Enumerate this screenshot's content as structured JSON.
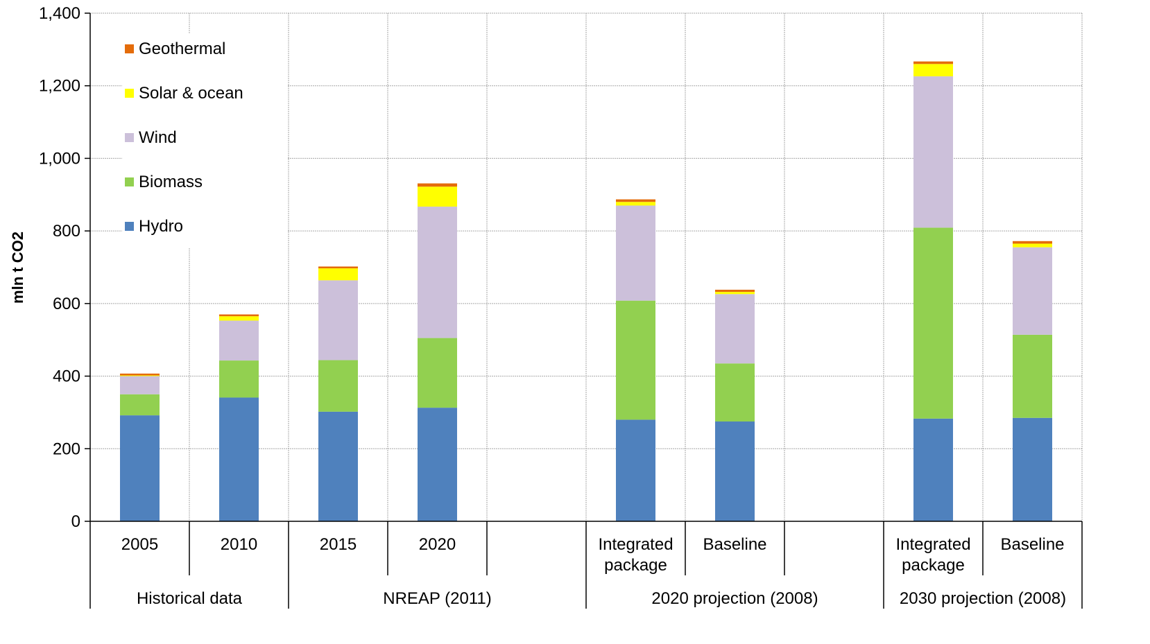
{
  "chart_data": {
    "type": "bar",
    "stacked": true,
    "title": "",
    "xlabel": "",
    "ylabel": "mln t CO2",
    "ylim": [
      0,
      1400
    ],
    "yticks": [
      0,
      200,
      400,
      600,
      800,
      1000,
      1200,
      1400
    ],
    "ytick_labels": [
      "0",
      "200",
      "400",
      "600",
      "800",
      "1,000",
      "1,200",
      "1,400"
    ],
    "grid": true,
    "legend_position": "top-left",
    "slots": [
      {
        "label": [
          "2005"
        ],
        "values": [
          292,
          58,
          50,
          2,
          5
        ]
      },
      {
        "label": [
          "2010"
        ],
        "values": [
          341,
          102,
          110,
          12,
          5
        ]
      },
      {
        "label": [
          "2015"
        ],
        "values": [
          302,
          142,
          220,
          33,
          5
        ]
      },
      {
        "label": [
          "2020"
        ],
        "values": [
          313,
          192,
          362,
          55,
          9
        ]
      },
      {
        "label": [],
        "values": null
      },
      {
        "label": [
          "Integrated",
          "package"
        ],
        "values": [
          280,
          328,
          262,
          10,
          7
        ]
      },
      {
        "label": [
          "Baseline"
        ],
        "values": [
          275,
          160,
          191,
          6,
          6
        ]
      },
      {
        "label": [],
        "values": null
      },
      {
        "label": [
          "Integrated",
          "package"
        ],
        "values": [
          283,
          526,
          417,
          34,
          7
        ]
      },
      {
        "label": [
          "Baseline"
        ],
        "values": [
          285,
          229,
          241,
          10,
          7
        ]
      }
    ],
    "groups": [
      {
        "label": "Historical data",
        "from": 0,
        "to": 1
      },
      {
        "label": "NREAP (2011)",
        "from": 2,
        "to": 4
      },
      {
        "label": "2020 projection (2008)",
        "from": 5,
        "to": 7
      },
      {
        "label": "2030 projection (2008)",
        "from": 8,
        "to": 9
      }
    ],
    "series": [
      {
        "name": "Hydro",
        "color": "#4F81BD"
      },
      {
        "name": "Biomass",
        "color": "#92D050"
      },
      {
        "name": "Wind",
        "color": "#CCC0DA"
      },
      {
        "name": "Solar & ocean",
        "color": "#FFFF00"
      },
      {
        "name": "Geothermal",
        "color": "#E46C0A"
      }
    ],
    "legend_order": [
      4,
      3,
      2,
      1,
      0
    ]
  }
}
